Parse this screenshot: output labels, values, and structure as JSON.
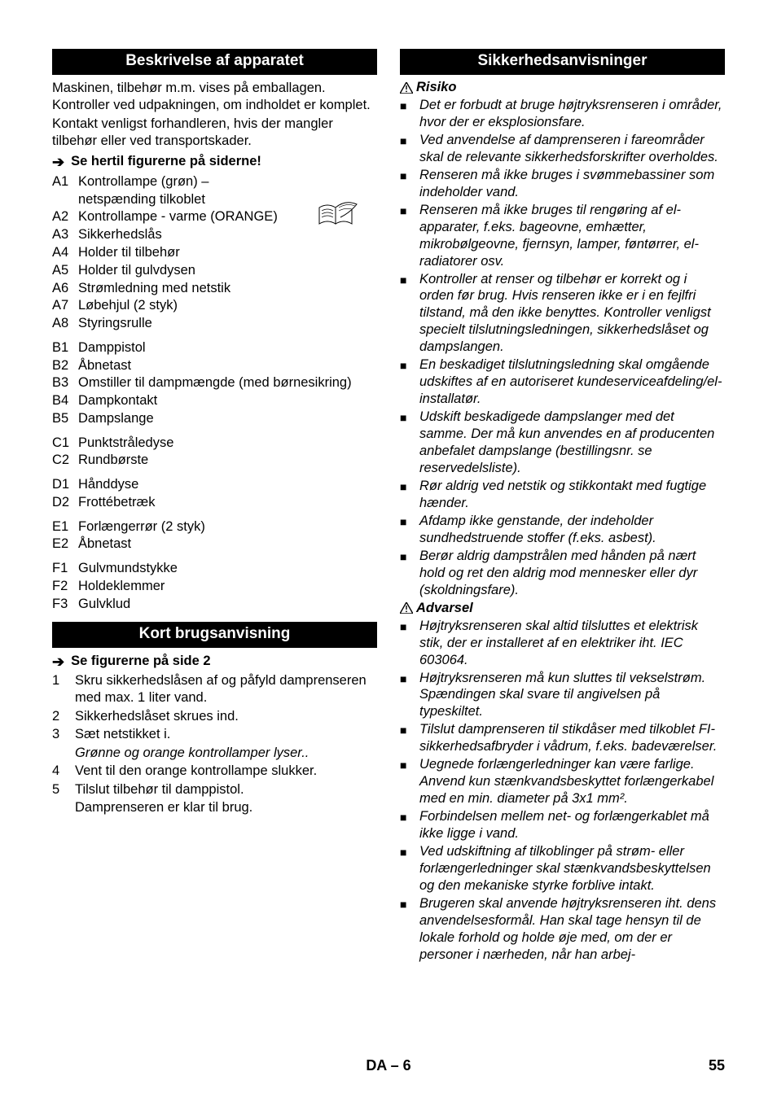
{
  "left": {
    "header1": "Beskrivelse af apparatet",
    "intro1": "Maskinen, tilbehør m.m. vises på emballagen. Kontroller ved udpakningen, om indholdet er komplet.",
    "intro2": "Kontakt venligst forhandleren, hvis der mangler tilbehør eller ved transportskader.",
    "arrow1": "Se hertil figurerne på siderne!",
    "parts": [
      [
        {
          "code": "A1",
          "label": "Kontrollampe (grøn) –",
          "label2": "netspænding tilkoblet"
        },
        {
          "code": "A2",
          "label": "Kontrollampe - varme (ORANGE)"
        },
        {
          "code": "A3",
          "label": "Sikkerhedslås"
        },
        {
          "code": "A4",
          "label": "Holder til tilbehør"
        },
        {
          "code": "A5",
          "label": "Holder til gulvdysen"
        },
        {
          "code": "A6",
          "label": "Strømledning med netstik"
        },
        {
          "code": "A7",
          "label": "Løbehjul (2 styk)"
        },
        {
          "code": "A8",
          "label": "Styringsrulle"
        }
      ],
      [
        {
          "code": "B1",
          "label": "Damppistol"
        },
        {
          "code": "B2",
          "label": "Åbnetast"
        },
        {
          "code": "B3",
          "label": "Omstiller til dampmængde (med børnesikring)"
        },
        {
          "code": "B4",
          "label": "Dampkontakt"
        },
        {
          "code": "B5",
          "label": "Dampslange"
        }
      ],
      [
        {
          "code": "C1",
          "label": "Punktstråledyse"
        },
        {
          "code": "C2",
          "label": "Rundbørste"
        }
      ],
      [
        {
          "code": "D1",
          "label": "Hånddyse"
        },
        {
          "code": "D2",
          "label": "Frottébetræk"
        }
      ],
      [
        {
          "code": "E1",
          "label": "Forlængerrør (2 styk)"
        },
        {
          "code": "E2",
          "label": "Åbnetast"
        }
      ],
      [
        {
          "code": "F1",
          "label": "Gulvmundstykke"
        },
        {
          "code": "F2",
          "label": "Holdeklemmer"
        },
        {
          "code": "F3",
          "label": "Gulvklud"
        }
      ]
    ],
    "header2": "Kort brugsanvisning",
    "arrow2": "Se figurerne på side 2",
    "steps": [
      {
        "n": "1",
        "t": "Skru sikkerhedslåsen af og påfyld damprenseren med max. 1 liter vand."
      },
      {
        "n": "2",
        "t": "Sikkerhedslåset skrues ind."
      },
      {
        "n": "3",
        "t": "Sæt netstikket i.",
        "t2": "Grønne og orange kontrollamper lyser.."
      },
      {
        "n": "4",
        "t": "Vent til den orange kontrollampe slukker."
      },
      {
        "n": "5",
        "t": "Tilslut tilbehør til damppistol.",
        "t3": "Damprenseren er klar til brug."
      }
    ]
  },
  "right": {
    "header": "Sikkerhedsanvisninger",
    "risk_label": "Risiko",
    "risk_items": [
      "Det er forbudt at bruge højtryksrenseren i områder, hvor der er eksplosionsfare.",
      "Ved anvendelse af damprenseren i fareområder skal de relevante sikkerhedsforskrifter overholdes.",
      "Renseren må ikke bruges i svømmebassiner som indeholder vand.",
      "Renseren må ikke bruges til rengøring af el-apparater, f.eks. bageovne, emhætter, mikrobølgeovne, fjernsyn, lamper, føntørrer, el-radiatorer osv.",
      "Kontroller at renser og tilbehør er korrekt og i orden før brug. Hvis renseren ikke er i en fejlfri tilstand, må den ikke benyttes. Kontroller venligst specielt tilslutningsledningen, sikkerhedslåset og dampslangen.",
      "En beskadiget tilslutningsledning skal omgående udskiftes af en autoriseret kundeserviceafdeling/el-installatør.",
      "Udskift beskadigede dampslanger med det samme. Der må kun anvendes en af producenten anbefalet dampslange (bestillingsnr. se reservedelsliste).",
      "Rør aldrig ved netstik og stikkontakt med fugtige hænder.",
      "Afdamp ikke genstande, der indeholder sundhedstruende stoffer (f.eks. asbest).",
      "Berør aldrig dampstrålen med hånden på nært hold og ret den aldrig mod mennesker eller dyr (skoldningsfare)."
    ],
    "warn_label": "Advarsel",
    "warn_items": [
      "Højtryksrenseren skal altid tilsluttes et elektrisk stik, der er installeret af en elektriker iht. IEC 603064.",
      "Højtryksrenseren må kun sluttes til vekselstrøm. Spændingen skal svare til angivelsen på typeskiltet.",
      "Tilslut damprenseren til stikdåser med tilkoblet FI-sikkerhedsafbryder i vådrum, f.eks. badeværelser.",
      "Uegnede forlængerledninger kan være farlige. Anvend kun stænkvandsbeskyttet forlængerkabel med en min. diameter på 3x1 mm².",
      "Forbindelsen mellem net- og forlængerkablet må ikke ligge i vand.",
      "Ved udskiftning af tilkoblinger på strøm- eller forlængerledninger skal stænkvandsbeskyttelsen og den mekaniske styrke forblive intakt.",
      "Brugeren skal anvende højtryksrenseren iht. dens anvendelsesformål. Han skal tage hensyn til de lokale forhold og holde øje med, om der er personer i nærheden, når han arbej-"
    ]
  },
  "footer_center": "DA – 6",
  "footer_page": "55"
}
